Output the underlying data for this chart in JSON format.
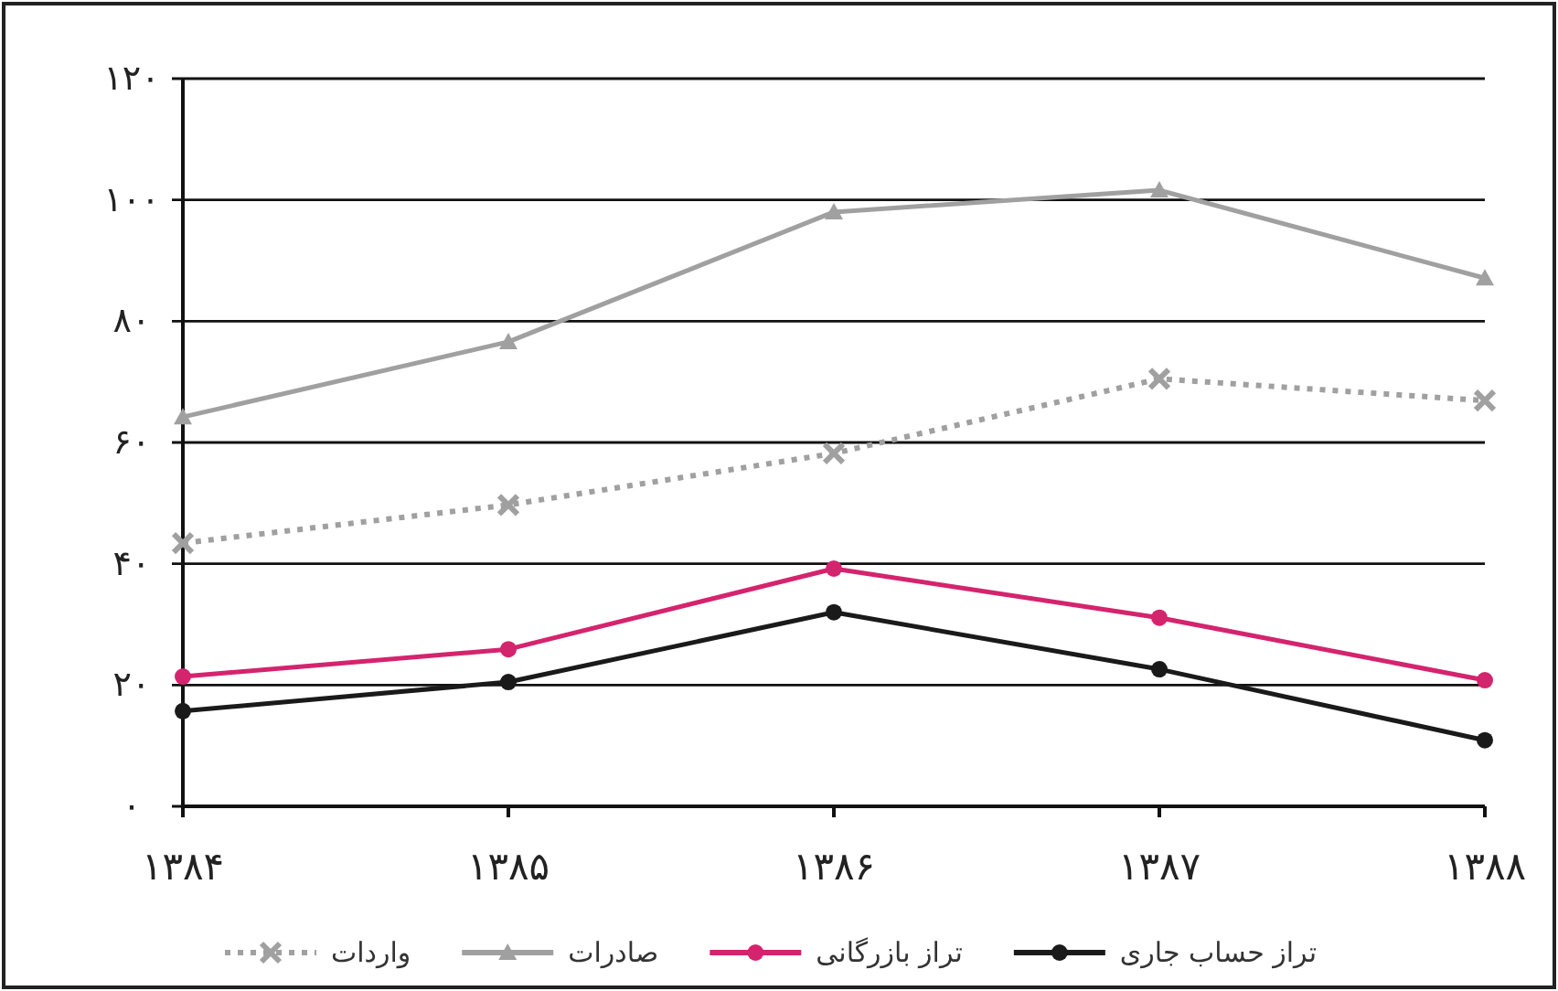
{
  "chart_data": {
    "type": "line",
    "categories": [
      "۱۳۸۴",
      "۱۳۸۵",
      "۱۳۸۶",
      "۱۳۸۷",
      "۱۳۸۸"
    ],
    "series": [
      {
        "name": "تراز حساب جاری",
        "color": "#1a1a1a",
        "marker": "circle",
        "line_style": "solid",
        "values": [
          15.7,
          20.5,
          32,
          22.6,
          10.9
        ]
      },
      {
        "name": "تراز بازرگانی",
        "color": "#d4246e",
        "marker": "circle",
        "line_style": "solid",
        "values": [
          21.4,
          25.9,
          39.2,
          31.1,
          20.8
        ]
      },
      {
        "name": "صادرات",
        "color": "#a0a0a0",
        "marker": "triangle",
        "line_style": "solid",
        "values": [
          64.2,
          76.6,
          98,
          101.6,
          87.1
        ]
      },
      {
        "name": "واردات",
        "color": "#a0a0a0",
        "marker": "cross",
        "line_style": "dotted",
        "values": [
          43.4,
          49.7,
          58.2,
          70.5,
          66.9
        ]
      }
    ],
    "ylim": [
      0,
      120
    ],
    "yticks": [
      {
        "value": 0,
        "label": "۰"
      },
      {
        "value": 20,
        "label": "۲۰"
      },
      {
        "value": 40,
        "label": "۴۰"
      },
      {
        "value": 60,
        "label": "۶۰"
      },
      {
        "value": 80,
        "label": "۸۰"
      },
      {
        "value": 100,
        "label": "۱۰۰"
      },
      {
        "value": 120,
        "label": "۱۲۰"
      }
    ],
    "grid": "y",
    "legend": "bottom"
  }
}
